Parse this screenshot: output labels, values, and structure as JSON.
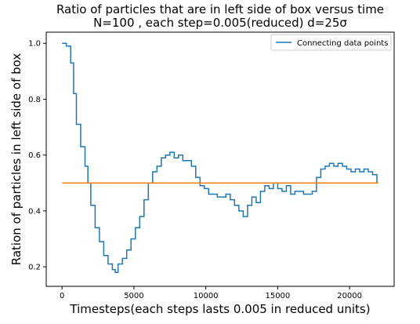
{
  "chart_data": {
    "type": "line",
    "title": "Ratio of particles that are in left side of box versus time",
    "subtitle": "N=100 , each step=0.005(reduced) d=25σ",
    "xlabel": "Timesteps(each steps lasts 0.005 in reduced units)",
    "ylabel": "Ration of particles in left side of box",
    "xlim": [
      -1100,
      23100
    ],
    "ylim": [
      0.13,
      1.04
    ],
    "x_ticks": [
      0,
      5000,
      10000,
      15000,
      20000
    ],
    "y_ticks": [
      0.2,
      0.4,
      0.6,
      0.8,
      1.0
    ],
    "x_tick_labels": [
      "0",
      "5000",
      "10000",
      "15000",
      "20000"
    ],
    "y_tick_labels": [
      "0.2",
      "0.4",
      "0.6",
      "0.8",
      "1.0"
    ],
    "grid": false,
    "legend_position": "top-right",
    "series": [
      {
        "name": "Connecting data points",
        "color": "#1f77b4",
        "x": [
          0,
          300,
          600,
          800,
          1000,
          1300,
          1600,
          1800,
          2000,
          2300,
          2600,
          2900,
          3200,
          3500,
          3700,
          3900,
          4200,
          4500,
          4800,
          5100,
          5400,
          5700,
          6000,
          6300,
          6600,
          6900,
          7200,
          7500,
          7800,
          8100,
          8400,
          8700,
          9000,
          9300,
          9600,
          9900,
          10200,
          10500,
          10800,
          11100,
          11400,
          11700,
          12000,
          12300,
          12600,
          12900,
          13200,
          13500,
          13800,
          14100,
          14400,
          14700,
          15000,
          15300,
          15600,
          15900,
          16200,
          16500,
          16800,
          17100,
          17400,
          17700,
          18000,
          18300,
          18600,
          18900,
          19200,
          19500,
          19800,
          20100,
          20400,
          20700,
          21000,
          21300,
          21600,
          21900
        ],
        "values": [
          1.0,
          0.99,
          0.93,
          0.82,
          0.71,
          0.63,
          0.56,
          0.5,
          0.42,
          0.34,
          0.29,
          0.24,
          0.21,
          0.19,
          0.18,
          0.21,
          0.23,
          0.26,
          0.3,
          0.34,
          0.38,
          0.44,
          0.5,
          0.54,
          0.56,
          0.59,
          0.6,
          0.61,
          0.59,
          0.6,
          0.58,
          0.58,
          0.56,
          0.52,
          0.49,
          0.48,
          0.46,
          0.46,
          0.45,
          0.45,
          0.46,
          0.44,
          0.42,
          0.4,
          0.38,
          0.42,
          0.45,
          0.43,
          0.47,
          0.49,
          0.48,
          0.5,
          0.48,
          0.47,
          0.49,
          0.46,
          0.47,
          0.47,
          0.46,
          0.46,
          0.47,
          0.52,
          0.55,
          0.56,
          0.57,
          0.56,
          0.57,
          0.56,
          0.55,
          0.54,
          0.55,
          0.54,
          0.55,
          0.54,
          0.53,
          0.5
        ]
      },
      {
        "name": "",
        "color": "#ff7f0e",
        "x": [
          0,
          22000
        ],
        "values": [
          0.5,
          0.5
        ]
      }
    ]
  }
}
